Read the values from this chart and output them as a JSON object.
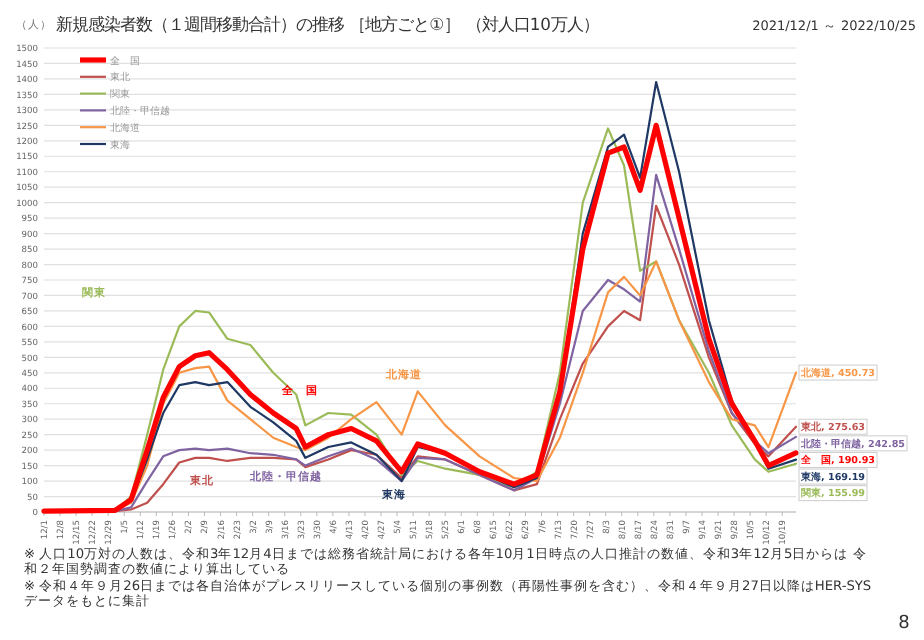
{
  "chart_data": {
    "type": "line",
    "title": "新規感染者数（１週間移動合計）の推移 ［地方ごと①］ （対人口10万人）",
    "subtitle": "2021/12/1 ～ 2022/10/25",
    "ylabel": "（人）",
    "x": [
      "2021-12-01",
      "2022-01-01",
      "2022-01-08",
      "2022-01-15",
      "2022-01-22",
      "2022-01-29",
      "2022-02-05",
      "2022-02-11",
      "2022-02-19",
      "2022-03-01",
      "2022-03-11",
      "2022-03-21",
      "2022-03-25",
      "2022-04-04",
      "2022-04-14",
      "2022-04-25",
      "2022-05-06",
      "2022-05-13",
      "2022-05-25",
      "2022-06-09",
      "2022-06-24",
      "2022-07-04",
      "2022-07-14",
      "2022-07-24",
      "2022-08-04",
      "2022-08-11",
      "2022-08-18",
      "2022-08-25",
      "2022-09-04",
      "2022-09-17",
      "2022-09-27",
      "2022-10-07",
      "2022-10-13",
      "2022-10-25"
    ],
    "series": [
      {
        "name": "全　国",
        "color": "#ff0000",
        "values": [
          3,
          5,
          40,
          200,
          370,
          470,
          505,
          515,
          460,
          380,
          320,
          270,
          210,
          250,
          270,
          230,
          130,
          220,
          190,
          130,
          90,
          120,
          390,
          850,
          1160,
          1180,
          1040,
          1250,
          950,
          560,
          350,
          230,
          150,
          190.93
        ],
        "value_labels": [
          null,
          null,
          null,
          null,
          null,
          null,
          null,
          null,
          null,
          null,
          null,
          null,
          null,
          null,
          null,
          null,
          null,
          null,
          null,
          null,
          null,
          null,
          null,
          null,
          null,
          null,
          null,
          null,
          null,
          null,
          null,
          null,
          null,
          "全　国, 190.93"
        ]
      },
      {
        "name": "東北",
        "color": "#c0504d",
        "values": [
          2,
          3,
          8,
          30,
          90,
          160,
          175,
          175,
          165,
          175,
          175,
          170,
          145,
          170,
          200,
          185,
          110,
          180,
          170,
          120,
          70,
          90,
          300,
          480,
          600,
          650,
          620,
          990,
          800,
          500,
          320,
          220,
          180,
          275.63
        ],
        "value_labels": [
          null,
          null,
          null,
          null,
          null,
          null,
          null,
          null,
          null,
          null,
          null,
          null,
          null,
          null,
          null,
          null,
          null,
          null,
          null,
          null,
          null,
          null,
          null,
          null,
          null,
          null,
          null,
          null,
          null,
          null,
          null,
          null,
          null,
          "東北, 275.63"
        ]
      },
      {
        "name": "関東",
        "color": "#9bbb59",
        "values": [
          3,
          6,
          50,
          250,
          460,
          600,
          650,
          645,
          560,
          540,
          450,
          380,
          280,
          320,
          315,
          250,
          120,
          165,
          140,
          120,
          80,
          130,
          450,
          1000,
          1240,
          1120,
          780,
          810,
          620,
          450,
          280,
          170,
          130,
          155.99
        ],
        "value_labels": [
          null,
          null,
          null,
          null,
          null,
          null,
          null,
          null,
          null,
          null,
          null,
          null,
          null,
          null,
          null,
          null,
          null,
          null,
          null,
          null,
          null,
          null,
          null,
          null,
          null,
          null,
          null,
          null,
          null,
          null,
          null,
          null,
          null,
          "関東, 155.99"
        ]
      },
      {
        "name": "北陸・甲信越",
        "color": "#8064a2",
        "values": [
          2,
          3,
          15,
          100,
          180,
          200,
          205,
          200,
          205,
          190,
          185,
          170,
          150,
          180,
          205,
          170,
          100,
          175,
          170,
          120,
          70,
          110,
          350,
          650,
          750,
          720,
          680,
          1090,
          850,
          520,
          320,
          230,
          190,
          242.85
        ],
        "value_labels": [
          null,
          null,
          null,
          null,
          null,
          null,
          null,
          null,
          null,
          null,
          null,
          null,
          null,
          null,
          null,
          null,
          null,
          null,
          null,
          null,
          null,
          null,
          null,
          null,
          null,
          null,
          null,
          null,
          null,
          null,
          null,
          null,
          null,
          "北陸・甲信越, 242.85"
        ]
      },
      {
        "name": "北海道",
        "color": "#f79646",
        "values": [
          3,
          5,
          30,
          150,
          350,
          450,
          465,
          470,
          360,
          300,
          240,
          210,
          200,
          240,
          300,
          355,
          250,
          390,
          280,
          180,
          110,
          100,
          240,
          450,
          710,
          760,
          700,
          810,
          620,
          420,
          300,
          280,
          210,
          450.73
        ],
        "value_labels": [
          null,
          null,
          null,
          null,
          null,
          null,
          null,
          null,
          null,
          null,
          null,
          null,
          null,
          null,
          null,
          null,
          null,
          null,
          null,
          null,
          null,
          null,
          null,
          null,
          null,
          null,
          null,
          null,
          null,
          null,
          null,
          null,
          null,
          "北海道, 450.73"
        ]
      },
      {
        "name": "東海",
        "color": "#1f3864",
        "values": [
          3,
          5,
          35,
          170,
          320,
          410,
          420,
          410,
          420,
          340,
          290,
          230,
          175,
          210,
          225,
          185,
          100,
          210,
          190,
          130,
          80,
          110,
          380,
          900,
          1180,
          1220,
          1080,
          1390,
          1100,
          620,
          360,
          230,
          140,
          169.19
        ],
        "value_labels": [
          null,
          null,
          null,
          null,
          null,
          null,
          null,
          null,
          null,
          null,
          null,
          null,
          null,
          null,
          null,
          null,
          null,
          null,
          null,
          null,
          null,
          null,
          null,
          null,
          null,
          null,
          null,
          null,
          null,
          null,
          null,
          null,
          null,
          "東海, 169.19"
        ]
      }
    ],
    "xlim": [
      "2021-12-01",
      "2022-10-25"
    ],
    "xticks": [
      {
        "value": "2021-12-01",
        "label": "12/1"
      },
      {
        "value": "2021-12-08",
        "label": "12/8"
      },
      {
        "value": "2021-12-15",
        "label": "12/15"
      },
      {
        "value": "2021-12-22",
        "label": "12/22"
      },
      {
        "value": "2021-12-29",
        "label": "12/29"
      },
      {
        "value": "2022-01-05",
        "label": "1/5"
      },
      {
        "value": "2022-01-12",
        "label": "1/12"
      },
      {
        "value": "2022-01-19",
        "label": "1/19"
      },
      {
        "value": "2022-01-26",
        "label": "1/26"
      },
      {
        "value": "2022-02-02",
        "label": "2/2"
      },
      {
        "value": "2022-02-09",
        "label": "2/9"
      },
      {
        "value": "2022-02-16",
        "label": "2/16"
      },
      {
        "value": "2022-02-23",
        "label": "2/23"
      },
      {
        "value": "2022-03-02",
        "label": "3/2"
      },
      {
        "value": "2022-03-09",
        "label": "3/9"
      },
      {
        "value": "2022-03-16",
        "label": "3/16"
      },
      {
        "value": "2022-03-23",
        "label": "3/23"
      },
      {
        "value": "2022-03-30",
        "label": "3/30"
      },
      {
        "value": "2022-04-06",
        "label": "4/6"
      },
      {
        "value": "2022-04-13",
        "label": "4/13"
      },
      {
        "value": "2022-04-20",
        "label": "4/20"
      },
      {
        "value": "2022-04-27",
        "label": "4/27"
      },
      {
        "value": "2022-05-04",
        "label": "5/4"
      },
      {
        "value": "2022-05-11",
        "label": "5/11"
      },
      {
        "value": "2022-05-18",
        "label": "5/18"
      },
      {
        "value": "2022-05-25",
        "label": "5/25"
      },
      {
        "value": "2022-06-01",
        "label": "6/1"
      },
      {
        "value": "2022-06-08",
        "label": "6/8"
      },
      {
        "value": "2022-06-15",
        "label": "6/15"
      },
      {
        "value": "2022-06-22",
        "label": "6/22"
      },
      {
        "value": "2022-06-29",
        "label": "6/29"
      },
      {
        "value": "2022-07-06",
        "label": "7/6"
      },
      {
        "value": "2022-07-13",
        "label": "7/13"
      },
      {
        "value": "2022-07-20",
        "label": "7/20"
      },
      {
        "value": "2022-07-27",
        "label": "7/27"
      },
      {
        "value": "2022-08-03",
        "label": "8/3"
      },
      {
        "value": "2022-08-10",
        "label": "8/10"
      },
      {
        "value": "2022-08-17",
        "label": "8/17"
      },
      {
        "value": "2022-08-24",
        "label": "8/24"
      },
      {
        "value": "2022-08-31",
        "label": "8/31"
      },
      {
        "value": "2022-09-07",
        "label": "9/7"
      },
      {
        "value": "2022-09-14",
        "label": "9/14"
      },
      {
        "value": "2022-09-21",
        "label": "9/21"
      },
      {
        "value": "2022-09-28",
        "label": "9/28"
      },
      {
        "value": "2022-10-05",
        "label": "10/5"
      },
      {
        "value": "2022-10-12",
        "label": "10/12"
      },
      {
        "value": "2022-10-19",
        "label": "10/19"
      }
    ],
    "ylim": [
      0,
      1500
    ],
    "yticks": [
      0,
      50,
      100,
      150,
      200,
      250,
      300,
      350,
      400,
      450,
      500,
      550,
      600,
      650,
      700,
      750,
      800,
      850,
      900,
      950,
      1000,
      1050,
      1100,
      1150,
      1200,
      1250,
      1300,
      1350,
      1400,
      1450,
      1500
    ],
    "grid": "y",
    "legend": "top left",
    "annotations": [
      "関東",
      "全　国",
      "北海道",
      "東北",
      "北陸・甲信越",
      "東海",
      "※ 人口10万対の人数は、令和3年12月4日までは総務省統計局における各年10月1日時点の人口推計の数値、令和3年12月5日からは 令和２年国勢調査の数値により算出している",
      "※ 令和４年９月26日までは各自治体がプレスリリースしている個別の事例数（再陽性事例を含む）、令和４年９月27日以降はHER-SYSデータをもとに集計",
      "8"
    ]
  }
}
